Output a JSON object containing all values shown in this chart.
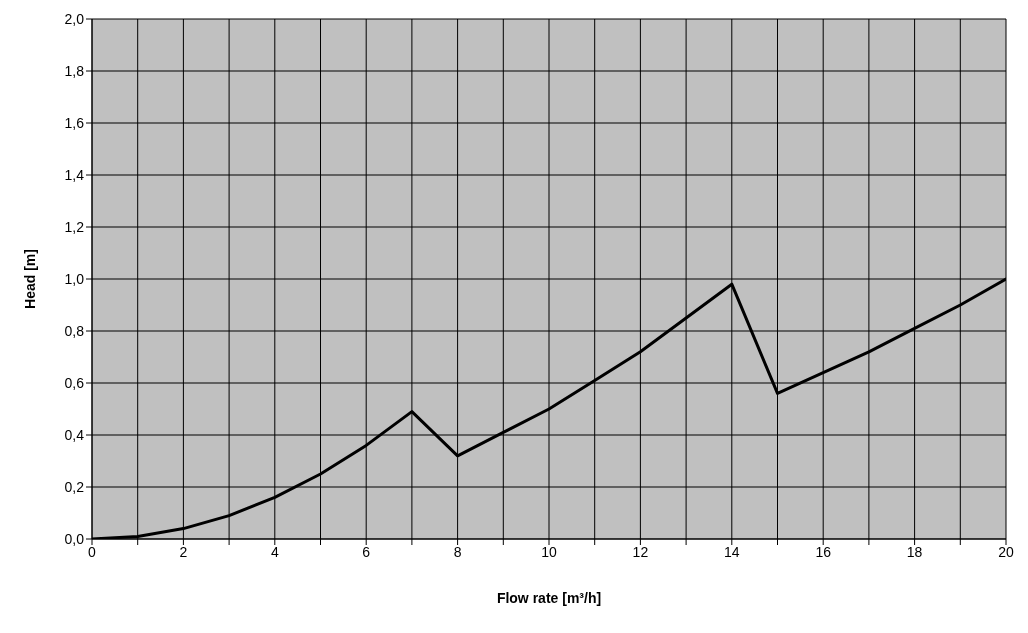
{
  "chart_data": {
    "type": "line",
    "xlabel": "Flow rate [m³/h]",
    "ylabel": "Head [m]",
    "x": [
      0,
      1,
      2,
      3,
      4,
      5,
      6,
      7,
      8,
      9,
      10,
      11,
      12,
      13,
      14,
      15,
      16,
      17,
      18,
      19,
      20
    ],
    "series": [
      {
        "color": "#000000",
        "values": [
          0,
          0.01,
          0.04,
          0.09,
          0.16,
          0.25,
          0.36,
          0.49,
          0.32,
          0.41,
          0.5,
          0.61,
          0.72,
          0.85,
          0.98,
          0.56,
          0.64,
          0.72,
          0.81,
          0.9,
          1.0
        ]
      }
    ],
    "xlim": [
      0,
      20
    ],
    "xticks": [
      0,
      {
        "value": 1,
        "label": null
      },
      2,
      {
        "value": 3,
        "label": null
      },
      4,
      {
        "value": 5,
        "label": null
      },
      6,
      {
        "value": 7,
        "label": null
      },
      8,
      {
        "value": 9,
        "label": null
      },
      10,
      {
        "value": 11,
        "label": null
      },
      12,
      {
        "value": 13,
        "label": null
      },
      14,
      {
        "value": 15,
        "label": null
      },
      16,
      {
        "value": 17,
        "label": null
      },
      18,
      {
        "value": 19,
        "label": null
      },
      20
    ],
    "ylim": [
      0,
      2
    ],
    "yticks": [
      {
        "value": 0,
        "label": "0,0"
      },
      {
        "value": 0.2,
        "label": "0,2"
      },
      {
        "value": 0.4,
        "label": "0,4"
      },
      {
        "value": 0.6,
        "label": "0,6"
      },
      {
        "value": 0.8,
        "label": "0,8"
      },
      {
        "value": 1,
        "label": "1,0"
      },
      {
        "value": 1.2,
        "label": "1,2"
      },
      {
        "value": 1.4,
        "label": "1,4"
      },
      {
        "value": 1.6,
        "label": "1,6"
      },
      {
        "value": 1.8,
        "label": "1,8"
      },
      {
        "value": 2,
        "label": "2,0"
      }
    ],
    "grid": true,
    "legend": false,
    "marker": "none",
    "line_style": "solid"
  }
}
